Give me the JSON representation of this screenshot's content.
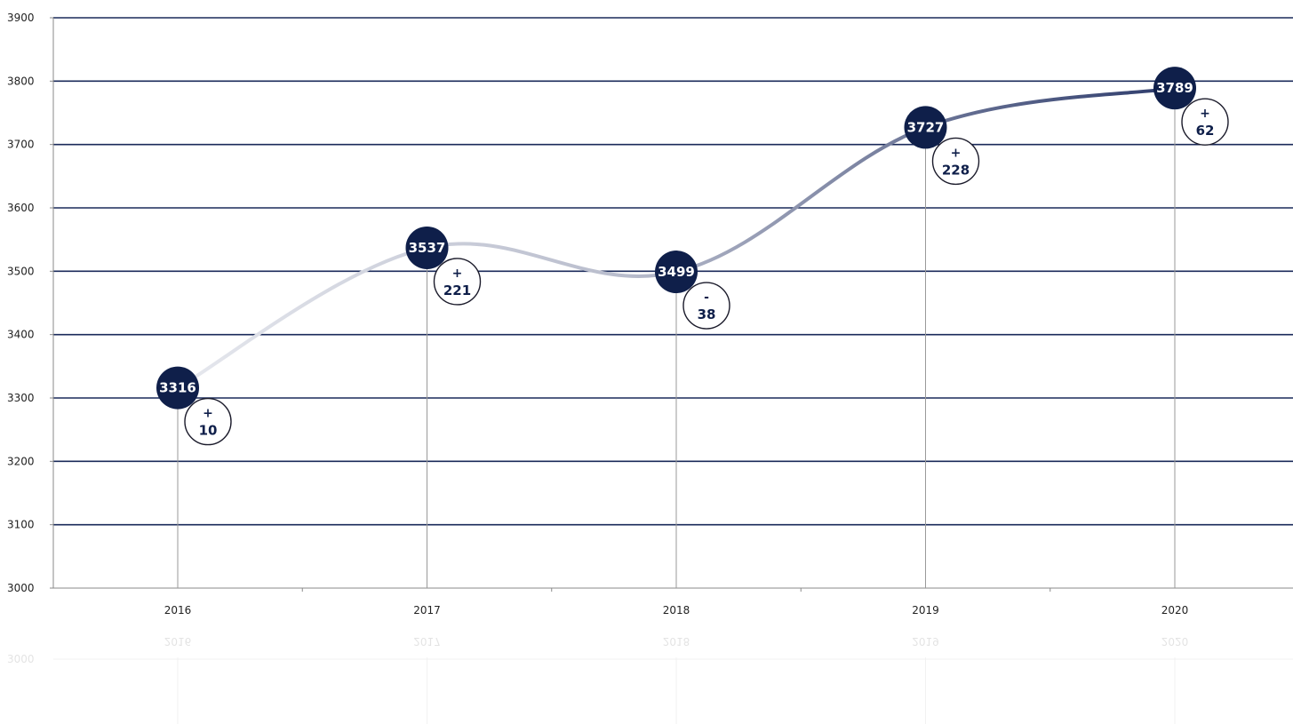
{
  "chart_data": {
    "type": "line",
    "categories": [
      "2016",
      "2017",
      "2018",
      "2019",
      "2020"
    ],
    "values": [
      3316,
      3537,
      3499,
      3727,
      3789
    ],
    "changes": [
      {
        "sign": "+",
        "value": "10"
      },
      {
        "sign": "+",
        "value": "221"
      },
      {
        "sign": "-",
        "value": "38"
      },
      {
        "sign": "+",
        "value": "228"
      },
      {
        "sign": "+",
        "value": "62"
      }
    ],
    "y_ticks": [
      "3000",
      "3100",
      "3200",
      "3300",
      "3400",
      "3500",
      "3600",
      "3700",
      "3800",
      "3900"
    ],
    "ylim": [
      3000,
      3900
    ],
    "grid": true,
    "title": "",
    "xlabel": "",
    "ylabel": "",
    "colors": {
      "marker": "#0f1f4a",
      "gridline": "#1a2a5a",
      "axis": "#8a8a8a",
      "line_start": "#e6e8ee",
      "line_end": "#2e3c6c"
    }
  }
}
